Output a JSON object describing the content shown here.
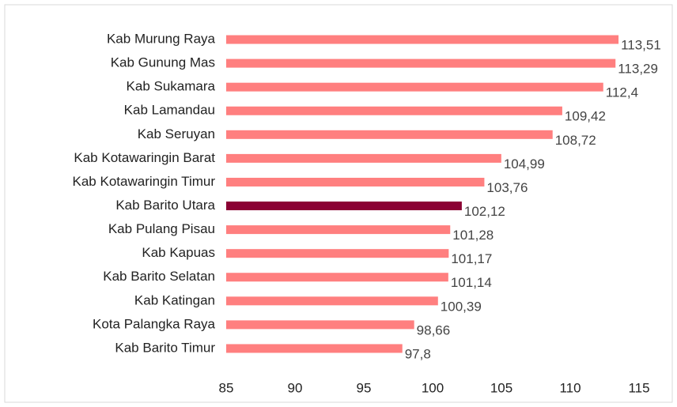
{
  "chart_data": {
    "type": "hbar",
    "categories": [
      "Kab Murung Raya",
      "Kab Gunung Mas",
      "Kab Sukamara",
      "Kab Lamandau",
      "Kab Seruyan",
      "Kab Kotawaringin Barat",
      "Kab Kotawaringin Timur",
      "Kab Barito Utara",
      "Kab Pulang Pisau",
      "Kab Kapuas",
      "Kab Barito Selatan",
      "Kab Katingan",
      "Kota Palangka Raya",
      "Kab Barito Timur"
    ],
    "values": [
      113.51,
      113.29,
      112.4,
      109.42,
      108.72,
      104.99,
      103.76,
      102.12,
      101.28,
      101.17,
      101.14,
      100.39,
      98.66,
      97.8
    ],
    "value_labels": [
      "113,51",
      "113,29",
      "112,4",
      "109,42",
      "108,72",
      "104,99",
      "103,76",
      "102,12",
      "101,28",
      "101,17",
      "101,14",
      "100,39",
      "98,66",
      "97,8"
    ],
    "colors": [
      "#ff7f7f",
      "#ff7f7f",
      "#ff7f7f",
      "#ff7f7f",
      "#ff7f7f",
      "#ff7f7f",
      "#ff7f7f",
      "#8b0033",
      "#ff7f7f",
      "#ff7f7f",
      "#ff7f7f",
      "#ff7f7f",
      "#ff7f7f",
      "#ff7f7f"
    ],
    "xlim": [
      85,
      115
    ],
    "xticks": [
      85,
      90,
      95,
      100,
      105,
      110,
      115
    ],
    "grid": false
  }
}
